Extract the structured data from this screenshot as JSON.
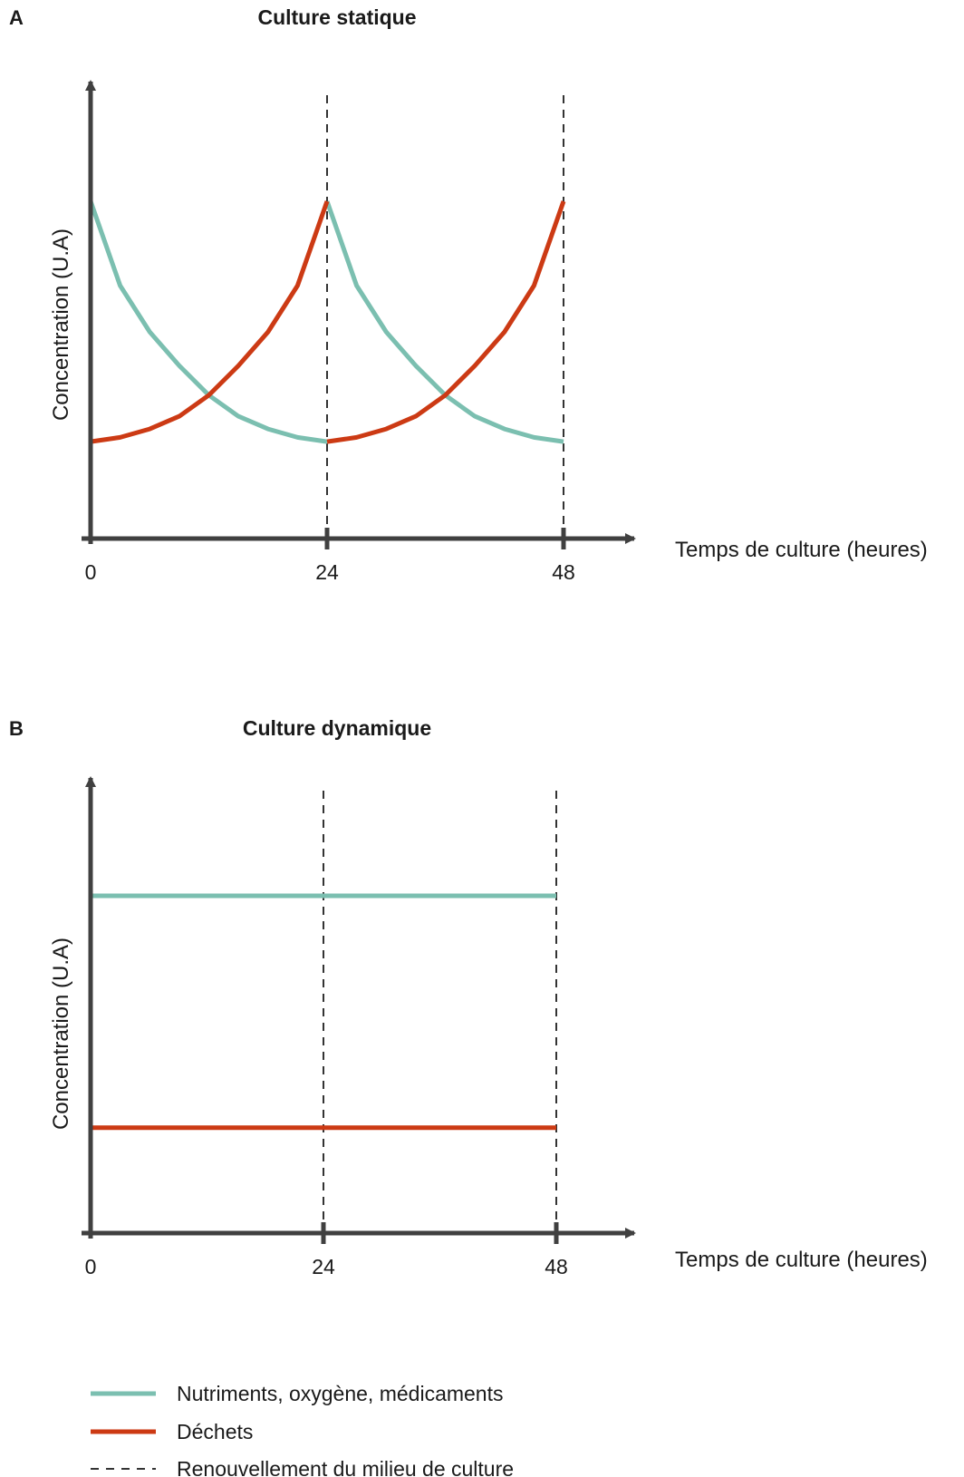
{
  "colors": {
    "nutrients": "#7bbfb0",
    "waste": "#cc3a14",
    "axis": "#404040",
    "renewal": "#333333"
  },
  "chart_data": [
    {
      "panel": "A",
      "title": "Culture statique",
      "type": "line",
      "xlabel": "Temps de culture (heures)",
      "ylabel": "Concentration (U.A)",
      "x_ticks": [
        "0",
        "24",
        "48"
      ],
      "xlim": [
        0,
        48
      ],
      "ylim": [
        0,
        1
      ],
      "renewal_times": [
        24,
        48
      ],
      "series": [
        {
          "key": "nutrients",
          "x": [
            0,
            3,
            6,
            9,
            12,
            15,
            18,
            21,
            24,
            24,
            27,
            30,
            33,
            36,
            39,
            42,
            45,
            48
          ],
          "y": [
            0.8,
            0.6,
            0.49,
            0.41,
            0.34,
            0.29,
            0.26,
            0.24,
            0.23,
            0.8,
            0.6,
            0.49,
            0.41,
            0.34,
            0.29,
            0.26,
            0.24,
            0.23
          ]
        },
        {
          "key": "waste",
          "x": [
            0,
            3,
            6,
            9,
            12,
            15,
            18,
            21,
            24,
            24,
            27,
            30,
            33,
            36,
            39,
            42,
            45,
            48
          ],
          "y": [
            0.23,
            0.24,
            0.26,
            0.29,
            0.34,
            0.41,
            0.49,
            0.6,
            0.8,
            0.23,
            0.24,
            0.26,
            0.29,
            0.34,
            0.41,
            0.49,
            0.6,
            0.8
          ]
        }
      ]
    },
    {
      "panel": "B",
      "title": "Culture dynamique",
      "type": "line",
      "xlabel": "Temps de culture (heures)",
      "ylabel": "Concentration (U.A)",
      "x_ticks": [
        "0",
        "24",
        "48"
      ],
      "xlim": [
        0,
        48
      ],
      "ylim": [
        0,
        1
      ],
      "renewal_times": [
        24,
        48
      ],
      "series": [
        {
          "key": "nutrients",
          "x": [
            0,
            48
          ],
          "y": [
            0.8,
            0.8
          ]
        },
        {
          "key": "waste",
          "x": [
            0,
            48
          ],
          "y": [
            0.25,
            0.25
          ]
        }
      ]
    }
  ],
  "legend": [
    {
      "key": "nutrients",
      "style": "solid",
      "label": "Nutriments, oxygène, médicaments"
    },
    {
      "key": "waste",
      "style": "solid",
      "label": "Déchets"
    },
    {
      "key": "renewal",
      "style": "dashed",
      "label": "Renouvellement du milieu de culture"
    }
  ]
}
